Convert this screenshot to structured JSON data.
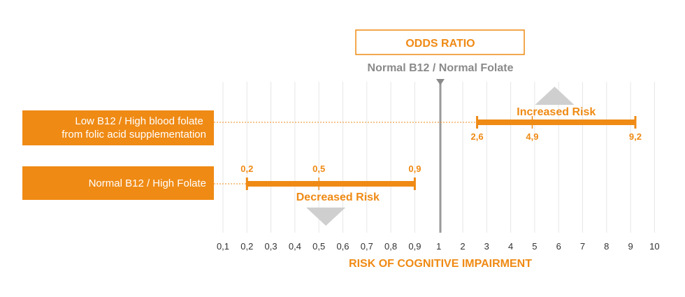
{
  "colors": {
    "accent": "#ef8a14",
    "grid": "#e6e6e6",
    "reference": "#9a9a9a",
    "arrow": "#cfcfcf",
    "subtitle": "#8a8a8a"
  },
  "chart_data": {
    "type": "forest",
    "title": "ODDS RATIO",
    "reference_label": "Normal B12 / Normal Folate",
    "xlabel": "RISK OF COGNITIVE IMPAIRMENT",
    "reference_value": 1,
    "xticks": [
      "0,1",
      "0,2",
      "0,3",
      "0,4",
      "0,5",
      "0,6",
      "0,7",
      "0,8",
      "0,9",
      "1",
      "2",
      "3",
      "4",
      "5",
      "6",
      "7",
      "8",
      "9",
      "10"
    ],
    "series": [
      {
        "name": "Low B12 / High blood folate from folic acid supplementation",
        "name_lines": [
          "Low B12 / High blood folate",
          "from folic acid supplementation"
        ],
        "low": 2.6,
        "estimate": 4.9,
        "high": 9.2,
        "low_label": "2,6",
        "estimate_label": "4,9",
        "high_label": "9,2",
        "annotation": "Increased Risk"
      },
      {
        "name": "Normal B12 / High Folate",
        "name_lines": [
          "Normal B12 / High Folate"
        ],
        "low": 0.2,
        "estimate": 0.5,
        "high": 0.9,
        "low_label": "0,2",
        "estimate_label": "0,5",
        "high_label": "0,9",
        "annotation": "Decreased Risk"
      }
    ]
  }
}
